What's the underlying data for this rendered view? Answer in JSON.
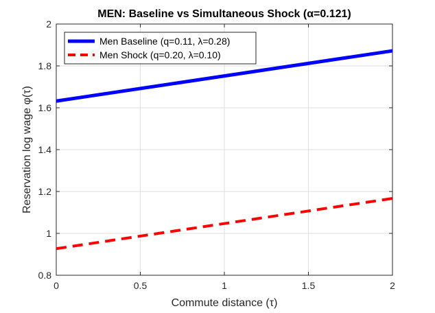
{
  "chart_data": {
    "type": "line",
    "title": "MEN: Baseline vs Simultaneous Shock (α=0.121)",
    "xlabel": "Commute distance (τ)",
    "ylabel": "Reservation log wage φ(τ)",
    "xlim": [
      0,
      2
    ],
    "ylim": [
      0.8,
      2
    ],
    "xticks": [
      0,
      0.5,
      1,
      1.5,
      2
    ],
    "xtick_labels": [
      "0",
      "0.5",
      "1",
      "1.5",
      "2"
    ],
    "yticks": [
      0.8,
      1,
      1.2,
      1.4,
      1.6,
      1.8,
      2
    ],
    "ytick_labels": [
      "0.8",
      "1",
      "1.2",
      "1.4",
      "1.6",
      "1.8",
      "2"
    ],
    "grid": true,
    "legend_position": "top-left",
    "series": [
      {
        "name": "Men Baseline (q=0.11, λ=0.28)",
        "color": "#0000ff",
        "style": "solid",
        "x": [
          0,
          2
        ],
        "y": [
          1.632,
          1.872
        ]
      },
      {
        "name": "Men Shock (q=0.20, λ=0.10)",
        "color": "#ff0000",
        "style": "dashed",
        "x": [
          0,
          2
        ],
        "y": [
          0.927,
          1.167
        ]
      }
    ]
  }
}
